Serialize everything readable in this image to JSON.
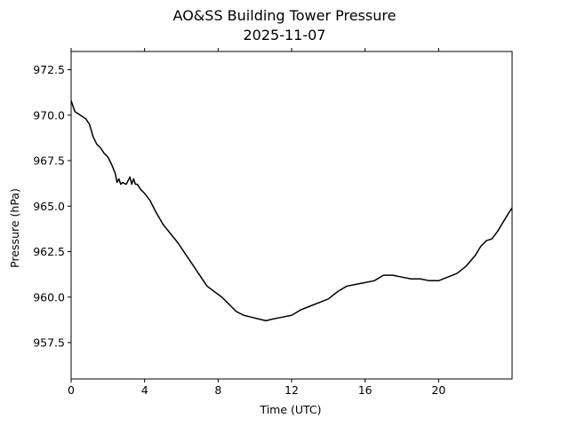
{
  "chart_data": {
    "type": "line",
    "title": "AO&SS Building Tower Pressure",
    "subtitle": "2025-11-07",
    "xlabel": "Time (UTC)",
    "ylabel": "Pressure (hPa)",
    "xlim": [
      0,
      24
    ],
    "ylim": [
      955.5,
      973.5
    ],
    "xticks": [
      0,
      4,
      8,
      12,
      16,
      20
    ],
    "xtick_labels": [
      "0",
      "4",
      "8",
      "12",
      "16",
      "20"
    ],
    "yticks": [
      957.5,
      960.0,
      962.5,
      965.0,
      967.5,
      970.0,
      972.5
    ],
    "ytick_labels": [
      "957.5",
      "960.0",
      "962.5",
      "965.0",
      "967.5",
      "970.0",
      "972.5"
    ],
    "grid": false,
    "line_color": "#000000",
    "series": [
      {
        "x": [
          0.0,
          0.2,
          0.5,
          0.8,
          1.0,
          1.2,
          1.4,
          1.6,
          1.8,
          2.0,
          2.2,
          2.4,
          2.5,
          2.6,
          2.7,
          2.8,
          3.0,
          3.2,
          3.3,
          3.4,
          3.5,
          3.6,
          3.8,
          4.0,
          4.3,
          4.6,
          5.0,
          5.4,
          5.8,
          6.2,
          6.6,
          7.0,
          7.4,
          7.8,
          8.2,
          8.6,
          9.0,
          9.4,
          9.8,
          10.2,
          10.6,
          11.0,
          11.5,
          12.0,
          12.5,
          13.0,
          13.5,
          14.0,
          14.5,
          15.0,
          15.5,
          16.0,
          16.5,
          17.0,
          17.5,
          18.0,
          18.5,
          19.0,
          19.5,
          20.0,
          20.5,
          21.0,
          21.5,
          22.0,
          22.3,
          22.6,
          22.9,
          23.2,
          23.5,
          23.8,
          24.0
        ],
        "y": [
          970.8,
          970.2,
          970.0,
          969.8,
          969.5,
          968.8,
          968.4,
          968.2,
          967.9,
          967.7,
          967.3,
          966.8,
          966.3,
          966.5,
          966.2,
          966.3,
          966.2,
          966.6,
          966.2,
          966.5,
          966.2,
          966.2,
          965.9,
          965.7,
          965.3,
          964.7,
          964.0,
          963.5,
          963.0,
          962.4,
          961.8,
          961.2,
          960.6,
          960.3,
          960.0,
          959.6,
          959.2,
          959.0,
          958.9,
          958.8,
          958.7,
          958.8,
          958.9,
          959.0,
          959.3,
          959.5,
          959.7,
          959.9,
          960.3,
          960.6,
          960.7,
          960.8,
          960.9,
          961.2,
          961.2,
          961.1,
          961.0,
          961.0,
          960.9,
          960.9,
          961.1,
          961.3,
          961.7,
          962.3,
          962.8,
          963.1,
          963.2,
          963.6,
          964.1,
          964.6,
          964.9
        ]
      }
    ]
  }
}
